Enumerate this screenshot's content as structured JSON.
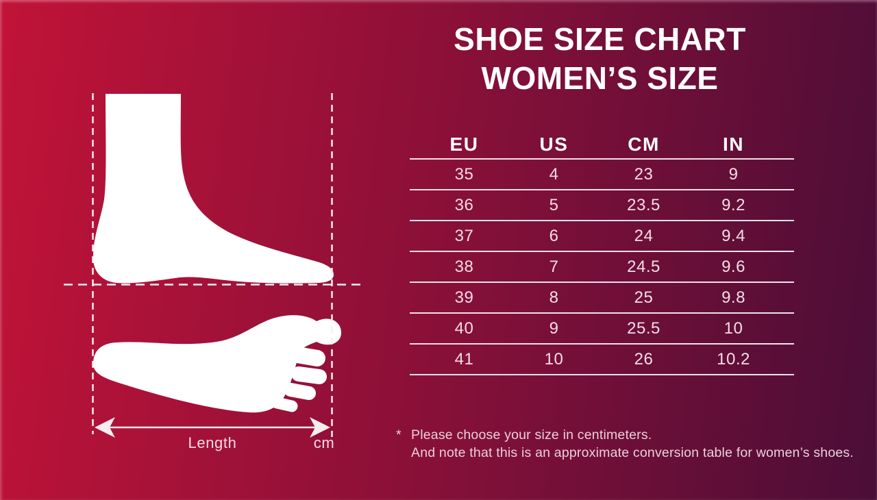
{
  "title": {
    "line1": "SHOE SIZE CHART",
    "line2": "WOMEN’S SIZE"
  },
  "diagram": {
    "length_label": "Length",
    "unit_label": "cm"
  },
  "footnote": {
    "marker": "*",
    "line1": "Please choose your size in centimeters.",
    "line2": "And note that this is an approximate conversion table for women’s shoes."
  },
  "chart_data": {
    "type": "table",
    "title": "SHOE SIZE CHART WOMEN’S SIZE",
    "columns": [
      "EU",
      "US",
      "CM",
      "IN"
    ],
    "rows": [
      [
        "35",
        "4",
        "23",
        "9"
      ],
      [
        "36",
        "5",
        "23.5",
        "9.2"
      ],
      [
        "37",
        "6",
        "24",
        "9.4"
      ],
      [
        "38",
        "7",
        "24.5",
        "9.6"
      ],
      [
        "39",
        "8",
        "25",
        "9.8"
      ],
      [
        "40",
        "9",
        "25.5",
        "10"
      ],
      [
        "41",
        "10",
        "26",
        "10.2"
      ]
    ]
  },
  "colors": {
    "bg_left": "#c11338",
    "bg_mid": "#8e1038",
    "bg_right": "#4a0e37",
    "foot": "#ffffff",
    "dash": "#f7edf1",
    "line": "#f2e2e9",
    "header_text": "#ffffff",
    "cell_text": "#f5dde6",
    "note_text": "#ecd0da",
    "label_text": "#f6dbe3"
  }
}
